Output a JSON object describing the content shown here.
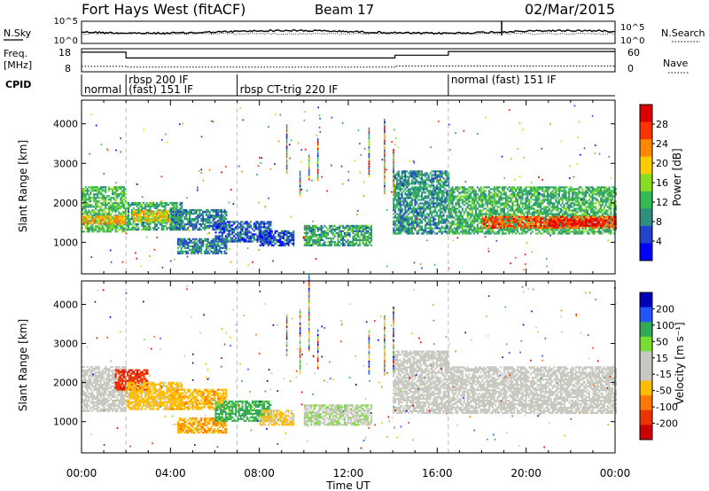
{
  "header": {
    "station": "Fort Hays West (fitACF)",
    "beam": "Beam 17",
    "date": "02/Mar/2015"
  },
  "noise_panel": {
    "left_label": "N.Sky",
    "right_label": "N.Search",
    "left_ticks": [
      "10^5",
      "10^0"
    ],
    "right_ticks": [
      "10^5",
      "10^0"
    ]
  },
  "freq_panel": {
    "left_label_line1": "Freq.",
    "left_label_line2": "[MHz]",
    "right_label": "Nave",
    "left_ticks": [
      "18",
      "8"
    ],
    "right_ticks": [
      "60",
      "0"
    ],
    "freq_steps": [
      {
        "t0": 0.0,
        "t1": 2.0,
        "mhz": 16.5
      },
      {
        "t0": 2.0,
        "t1": 14.1,
        "mhz": 14.0
      },
      {
        "t0": 14.1,
        "t1": 16.5,
        "mhz": 15.2
      },
      {
        "t0": 16.5,
        "t1": 24.0,
        "mhz": 16.8
      }
    ],
    "nave_steps": [
      {
        "t0": 0.0,
        "t1": 2.0,
        "nave": 14
      },
      {
        "t0": 2.0,
        "t1": 14.1,
        "nave": 12
      },
      {
        "t0": 14.1,
        "t1": 24.0,
        "nave": 15
      }
    ]
  },
  "cpid": {
    "label": "CPID",
    "segments": [
      {
        "text": "normal",
        "t": 0.0,
        "row": "bottom"
      },
      {
        "text": "rbsp 200 IF",
        "t": 2.0,
        "row": "top"
      },
      {
        "text": "(fast) 151 IF",
        "t": 2.0,
        "row": "bottom"
      },
      {
        "text": "rbsp CT-trig 220 IF",
        "t": 7.0,
        "row": "bottom"
      },
      {
        "text": "normal (fast) 151 IF",
        "t": 16.5,
        "row": "top"
      }
    ],
    "dividers": [
      2.0,
      7.0,
      16.5
    ]
  },
  "axes": {
    "ylabel": "Slant Range [km]",
    "xlabel": "Time UT",
    "yticks": [
      1000,
      2000,
      3000,
      4000
    ],
    "ylim": [
      200,
      4600
    ],
    "xlim": [
      0,
      24
    ],
    "xticks": [
      "00:00",
      "04:00",
      "08:00",
      "12:00",
      "16:00",
      "20:00",
      "00:00"
    ]
  },
  "chart_data": [
    {
      "type": "heatmap",
      "quantity": "Power",
      "colorbar_label": "Power [dB]",
      "colorbar_ticks": [
        "4",
        "8",
        "12",
        "16",
        "20",
        "24",
        "28"
      ],
      "colorbar_range": [
        0,
        30
      ],
      "colors": [
        "#0000ff",
        "#2244cc",
        "#2f8f7f",
        "#33bb55",
        "#88dd22",
        "#ffcc00",
        "#ff8800",
        "#ff3300",
        "#dd0000"
      ],
      "regions": [
        {
          "t0": 0.0,
          "t1": 2.0,
          "r0": 1250,
          "r1": 2400,
          "level": 12
        },
        {
          "t0": 0.0,
          "t1": 2.0,
          "r0": 1450,
          "r1": 1650,
          "level": 20
        },
        {
          "t0": 2.0,
          "t1": 4.5,
          "r0": 1300,
          "r1": 2000,
          "level": 10
        },
        {
          "t0": 2.3,
          "t1": 4.0,
          "r0": 1500,
          "r1": 1800,
          "level": 18
        },
        {
          "t0": 4.0,
          "t1": 6.5,
          "r0": 1300,
          "r1": 1800,
          "level": 8
        },
        {
          "t0": 4.3,
          "t1": 6.5,
          "r0": 700,
          "r1": 1100,
          "level": 8
        },
        {
          "t0": 6.0,
          "t1": 8.5,
          "r0": 1000,
          "r1": 1500,
          "level": 6
        },
        {
          "t0": 8.0,
          "t1": 9.5,
          "r0": 900,
          "r1": 1300,
          "level": 5
        },
        {
          "t0": 10.0,
          "t1": 13.0,
          "r0": 900,
          "r1": 1400,
          "level": 10
        },
        {
          "t0": 14.0,
          "t1": 16.5,
          "r0": 1200,
          "r1": 2800,
          "level": 9
        },
        {
          "t0": 16.5,
          "t1": 24.0,
          "r0": 1200,
          "r1": 2400,
          "level": 11
        },
        {
          "t0": 18.0,
          "t1": 24.0,
          "r0": 1350,
          "r1": 1650,
          "level": 24
        },
        {
          "t0": 21.0,
          "t1": 23.5,
          "r0": 1400,
          "r1": 1550,
          "level": 28
        }
      ]
    },
    {
      "type": "heatmap",
      "quantity": "Velocity",
      "colorbar_label": "Velocity [m s⁻¹]",
      "colorbar_ticks": [
        "200",
        "100",
        "50",
        "15",
        "-15",
        "-50",
        "-100",
        "-200"
      ],
      "colorbar_range": [
        -250,
        250
      ],
      "colors": [
        "#0000bb",
        "#2255ff",
        "#33aa55",
        "#77dd33",
        "#c8c8c0",
        "#c8c8c0",
        "#ffbb00",
        "#ff7700",
        "#ee3300",
        "#cc0000"
      ],
      "regions": [
        {
          "t0": 0.0,
          "t1": 2.0,
          "r0": 1250,
          "r1": 2400,
          "value": 0
        },
        {
          "t0": 1.5,
          "t1": 3.0,
          "r0": 1800,
          "r1": 2300,
          "value": -180
        },
        {
          "t0": 2.0,
          "t1": 4.5,
          "r0": 1300,
          "r1": 2000,
          "value": -70
        },
        {
          "t0": 4.0,
          "t1": 6.5,
          "r0": 1300,
          "r1": 1800,
          "value": -80
        },
        {
          "t0": 4.3,
          "t1": 6.5,
          "r0": 700,
          "r1": 1100,
          "value": -90
        },
        {
          "t0": 6.0,
          "t1": 8.5,
          "r0": 1000,
          "r1": 1500,
          "value": 120
        },
        {
          "t0": 8.0,
          "t1": 9.5,
          "r0": 900,
          "r1": 1300,
          "value": -60
        },
        {
          "t0": 10.0,
          "t1": 13.0,
          "r0": 900,
          "r1": 1400,
          "value": 40
        },
        {
          "t0": 14.0,
          "t1": 16.5,
          "r0": 1200,
          "r1": 2800,
          "value": 0
        },
        {
          "t0": 16.5,
          "t1": 24.0,
          "r0": 1200,
          "r1": 2400,
          "value": 0
        }
      ]
    }
  ]
}
